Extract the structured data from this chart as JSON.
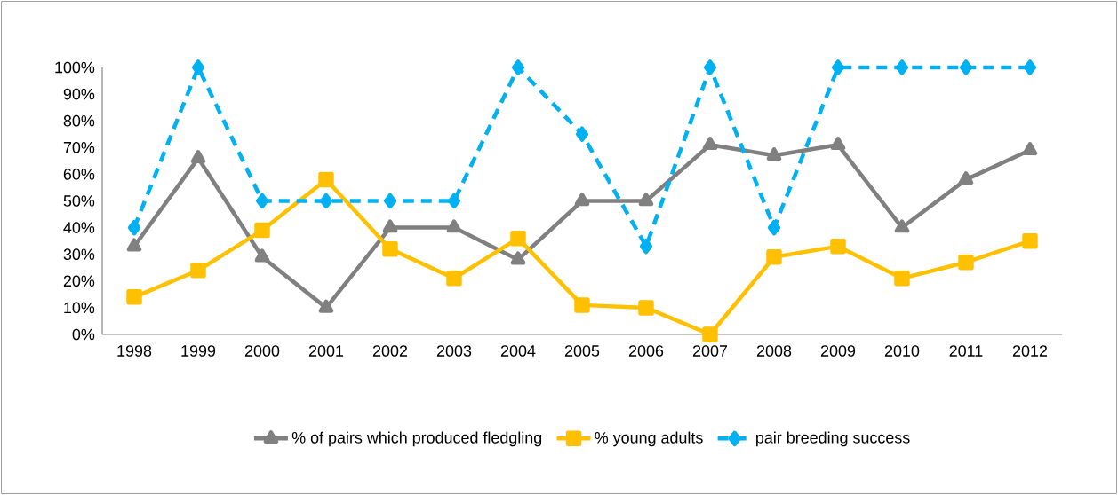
{
  "chart_data": {
    "type": "line",
    "categories": [
      "1998",
      "1999",
      "2000",
      "2001",
      "2002",
      "2003",
      "2004",
      "2005",
      "2006",
      "2007",
      "2008",
      "2009",
      "2010",
      "2011",
      "2012"
    ],
    "series": [
      {
        "name": "% of pairs which produced fledgling",
        "color": "#808080",
        "marker": "triangle",
        "line_style": "solid",
        "values": [
          33,
          66,
          29,
          10,
          40,
          40,
          28,
          50,
          50,
          71,
          67,
          71,
          40,
          58,
          69
        ]
      },
      {
        "name": "% young adults",
        "color": "#ffc000",
        "marker": "square",
        "line_style": "solid",
        "values": [
          14,
          24,
          39,
          58,
          32,
          21,
          36,
          11,
          10,
          0,
          29,
          33,
          21,
          27,
          35
        ]
      },
      {
        "name": "pair breeding success",
        "color": "#00b0f0",
        "marker": "diamond",
        "line_style": "dashed",
        "values": [
          40,
          100,
          50,
          50,
          50,
          50,
          100,
          75,
          33,
          100,
          40,
          100,
          100,
          100,
          100
        ]
      }
    ],
    "ylim": [
      0,
      100
    ],
    "yticks": [
      {
        "value": 0,
        "label": "0%"
      },
      {
        "value": 10,
        "label": "10%"
      },
      {
        "value": 20,
        "label": "20%"
      },
      {
        "value": 30,
        "label": "30%"
      },
      {
        "value": 40,
        "label": "40%"
      },
      {
        "value": 50,
        "label": "50%"
      },
      {
        "value": 60,
        "label": "60%"
      },
      {
        "value": 70,
        "label": "70%"
      },
      {
        "value": 80,
        "label": "80%"
      },
      {
        "value": 90,
        "label": "90%"
      },
      {
        "value": 100,
        "label": "100%"
      }
    ],
    "grid": false,
    "legend": "bottom"
  }
}
